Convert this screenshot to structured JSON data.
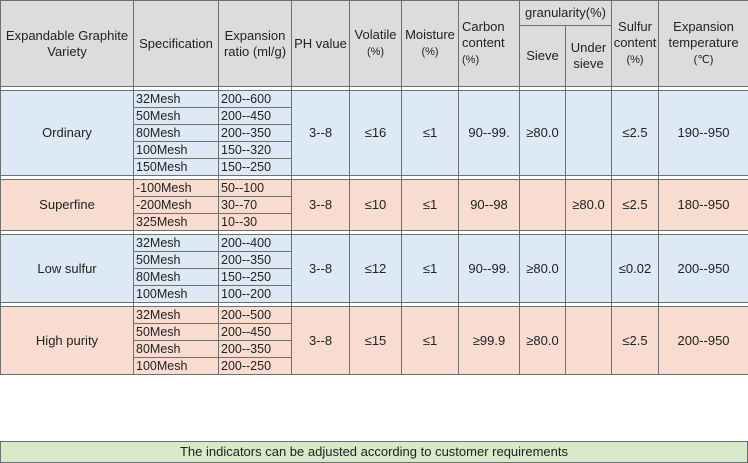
{
  "header": {
    "variety": "Expandable Graphite Variety",
    "specification": "Specification",
    "expansion_ratio": "Expansion ratio (ml/g)",
    "ph": "PH value",
    "volatile": "Volatile",
    "volatile_unit": "(%)",
    "moisture": "Moisture",
    "moisture_unit": "(%)",
    "carbon": "Carbon content",
    "carbon_unit": "(%)",
    "granularity": "granularity(%)",
    "sieve": "Sieve",
    "under_sieve": "Under sieve",
    "sulfur": "Sulfur content",
    "sulfur_unit": "(%)",
    "expansion_temp": "Expansion temperature",
    "expansion_temp_unit": "(℃)"
  },
  "groups": [
    {
      "name": "Ordinary",
      "ph": "3--8",
      "volatile": "≤16",
      "moisture": "≤1",
      "carbon": "90--99.",
      "sieve": "≥80.0",
      "under_sieve": "",
      "sulfur": "≤2.5",
      "expansion_temp": "190--950",
      "rows": [
        {
          "spec": "32Mesh",
          "ratio": "200--600"
        },
        {
          "spec": "50Mesh",
          "ratio": "200--450"
        },
        {
          "spec": "80Mesh",
          "ratio": "200--350"
        },
        {
          "spec": "100Mesh",
          "ratio": "150--320"
        },
        {
          "spec": "150Mesh",
          "ratio": "150--250"
        }
      ]
    },
    {
      "name": "Superfine",
      "ph": "3--8",
      "volatile": "≤10",
      "moisture": "≤1",
      "carbon": "90--98",
      "sieve": "",
      "under_sieve": "≥80.0",
      "sulfur": "≤2.5",
      "expansion_temp": "180--950",
      "rows": [
        {
          "spec": "-100Mesh",
          "ratio": "50--100"
        },
        {
          "spec": "-200Mesh",
          "ratio": "30--70"
        },
        {
          "spec": "325Mesh",
          "ratio": "10--30"
        }
      ]
    },
    {
      "name": "Low sulfur",
      "ph": "3--8",
      "volatile": "≤12",
      "moisture": "≤1",
      "carbon": "90--99.",
      "sieve": "≥80.0",
      "under_sieve": "",
      "sulfur": "≤0.02",
      "expansion_temp": "200--950",
      "rows": [
        {
          "spec": "32Mesh",
          "ratio": "200--400"
        },
        {
          "spec": "50Mesh",
          "ratio": "200--350"
        },
        {
          "spec": "80Mesh",
          "ratio": "150--250"
        },
        {
          "spec": "100Mesh",
          "ratio": "100--200"
        }
      ]
    },
    {
      "name": "High purity",
      "ph": "3--8",
      "volatile": "≤15",
      "moisture": "≤1",
      "carbon": "≥99.9",
      "sieve": "≥80.0",
      "under_sieve": "",
      "sulfur": "≤2.5",
      "expansion_temp": "200--950",
      "rows": [
        {
          "spec": "32Mesh",
          "ratio": "200--500"
        },
        {
          "spec": "50Mesh",
          "ratio": "200--450"
        },
        {
          "spec": "80Mesh",
          "ratio": "200--350"
        },
        {
          "spec": "100Mesh",
          "ratio": "200--250"
        }
      ]
    }
  ],
  "footer": "The indicators can be adjusted according to customer requirements",
  "colors": {
    "header_bg": "#dcdcdc",
    "blue_group_bg": "#dde9f5",
    "peach_group_bg": "#f9dcd0",
    "footer_bg": "#d6e9c9"
  }
}
